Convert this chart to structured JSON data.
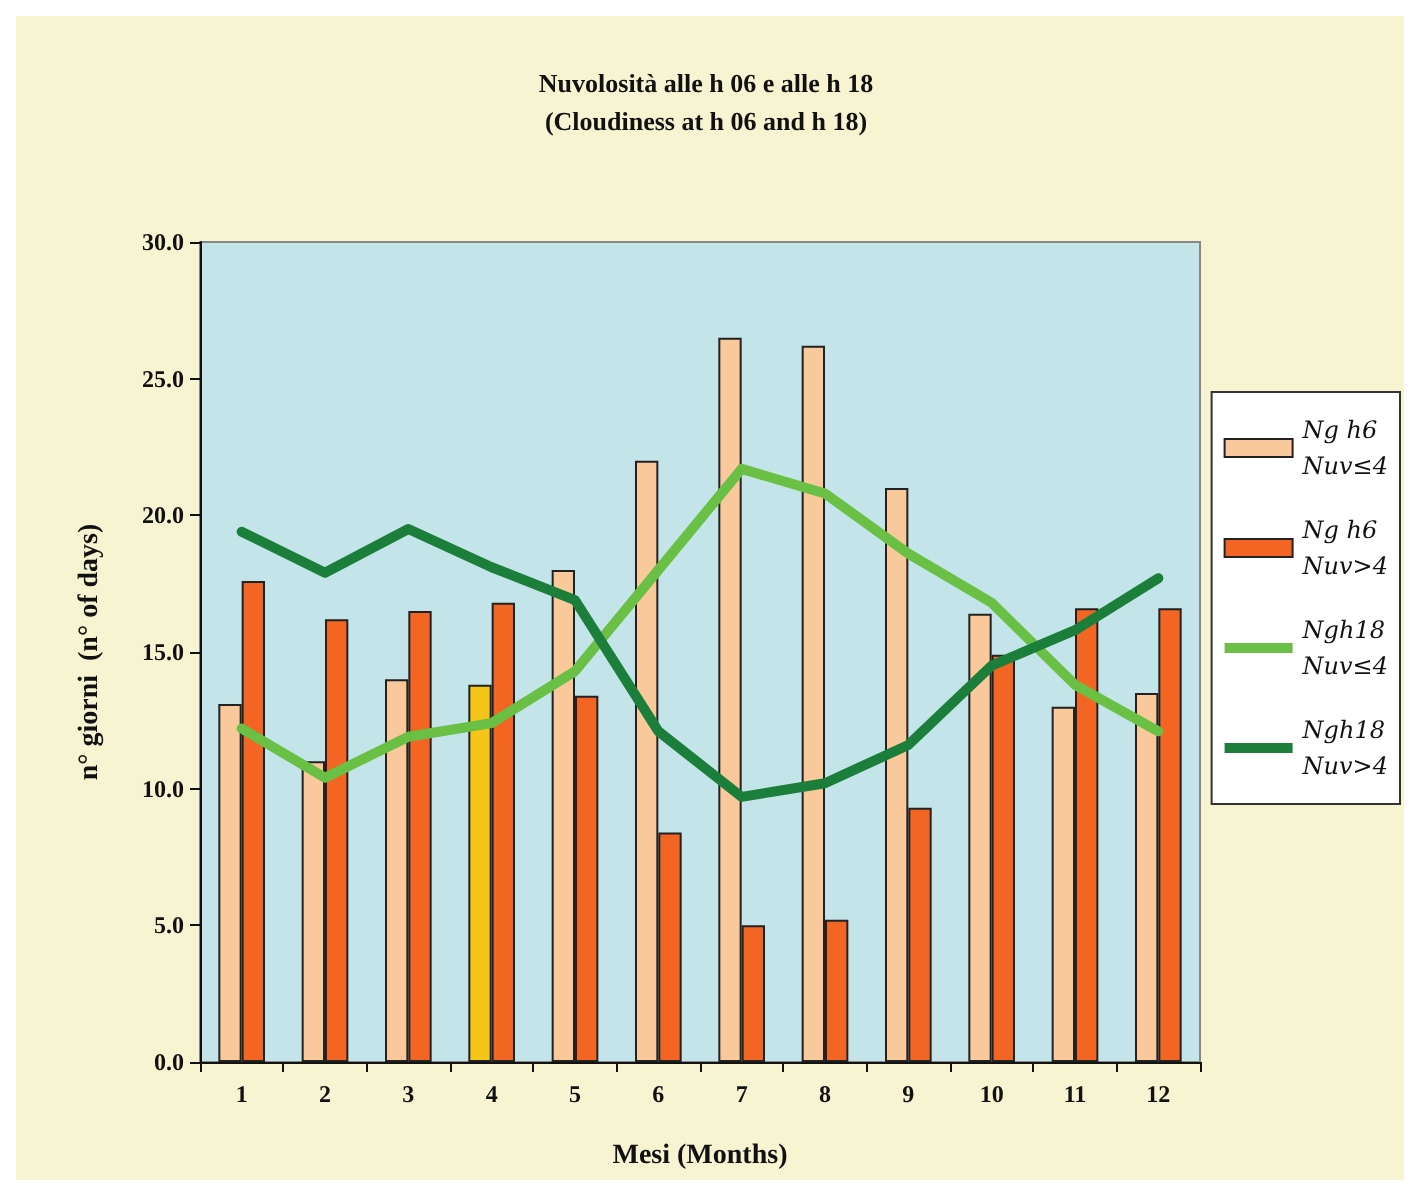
{
  "chart_data": {
    "type": "bar",
    "title": "Nuvolosità alle h 06 e alle h 18",
    "subtitle": "(Cloudiness at h 06 and h 18)",
    "xlabel": "Mesi (Months)",
    "ylabel": "n° giorni  (n° of days)",
    "categories": [
      "1",
      "2",
      "3",
      "4",
      "5",
      "6",
      "7",
      "8",
      "9",
      "10",
      "11",
      "12"
    ],
    "series": [
      {
        "name": "Ng h6\nNuv≤4",
        "color": "#f9c89b",
        "colors": [
          "#f9c89b",
          "#f9c89b",
          "#f9c89b",
          "#f5c518",
          "#f9c89b",
          "#f9c89b",
          "#f9c89b",
          "#f9c89b",
          "#f9c89b",
          "#f9c89b",
          "#f9c89b",
          "#f9c89b"
        ],
        "values": [
          13.1,
          11.0,
          14.0,
          13.8,
          18.0,
          22.0,
          26.5,
          26.2,
          21.0,
          16.4,
          13.0,
          13.5
        ]
      },
      {
        "name": "Ng h6\nNuv>4",
        "color": "#f26522",
        "values": [
          17.6,
          16.2,
          16.5,
          16.8,
          13.4,
          8.4,
          5.0,
          5.2,
          9.3,
          14.9,
          16.6,
          16.6
        ]
      },
      {
        "name": "Ngh18\nNuv≤4",
        "type": "line",
        "color": "#6abf45",
        "values": [
          12.2,
          10.4,
          11.9,
          12.4,
          14.3,
          18.0,
          21.7,
          20.8,
          18.6,
          16.8,
          13.8,
          12.1
        ]
      },
      {
        "name": "Ngh18\nNuv>4",
        "type": "line",
        "color": "#1b7e3a",
        "values": [
          19.4,
          17.9,
          19.5,
          18.1,
          16.9,
          12.1,
          9.7,
          10.2,
          11.6,
          14.5,
          15.8,
          17.7
        ]
      }
    ],
    "ylim": [
      0,
      30
    ],
    "yticks": [
      {
        "value": 0,
        "label": "0.0"
      },
      {
        "value": 5,
        "label": "5.0"
      },
      {
        "value": 10,
        "label": "10.0"
      },
      {
        "value": 15,
        "label": "15.0"
      },
      {
        "value": 20,
        "label": "20.0"
      },
      {
        "value": 25,
        "label": "25.0"
      },
      {
        "value": 30,
        "label": "30.0"
      }
    ],
    "grid": false,
    "legend": "right",
    "marker": "none",
    "line_style": "solid"
  }
}
